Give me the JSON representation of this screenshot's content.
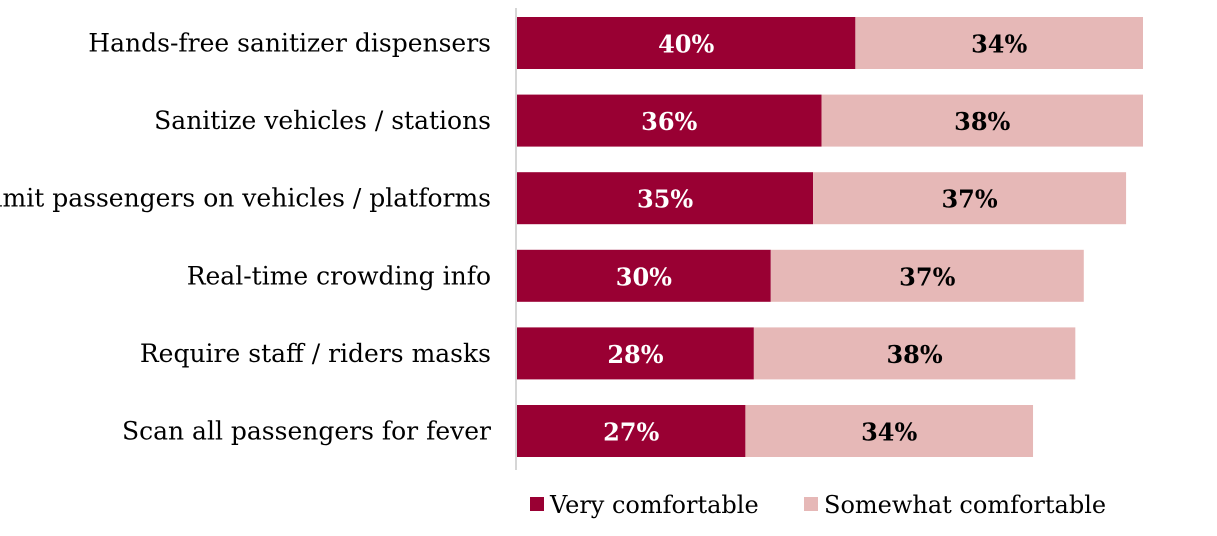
{
  "chart_data": {
    "type": "bar",
    "orientation": "horizontal",
    "stacked": true,
    "categories": [
      "Hands-free sanitizer dispensers",
      "Sanitize vehicles /  stations",
      "Limit passengers on vehicles / platforms",
      "Real-time  crowding info",
      "Require staff / riders masks",
      "Scan all passengers for fever"
    ],
    "series": [
      {
        "name": "Very comfortable",
        "color": "#990033",
        "label_color": "#ffffff",
        "values": [
          40,
          36,
          35,
          30,
          28,
          27
        ],
        "labels": [
          "40%",
          "36%",
          "35%",
          "30%",
          "28%",
          "27%"
        ]
      },
      {
        "name": "Somewhat comfortable",
        "color": "#e6b8b7",
        "label_color": "#000000",
        "values": [
          34,
          38,
          37,
          37,
          38,
          34
        ],
        "labels": [
          "34%",
          "38%",
          "37%",
          "37%",
          "38%",
          "34%"
        ]
      }
    ],
    "xlim": [
      0,
      74
    ],
    "grid": false,
    "legend": "bottom"
  }
}
